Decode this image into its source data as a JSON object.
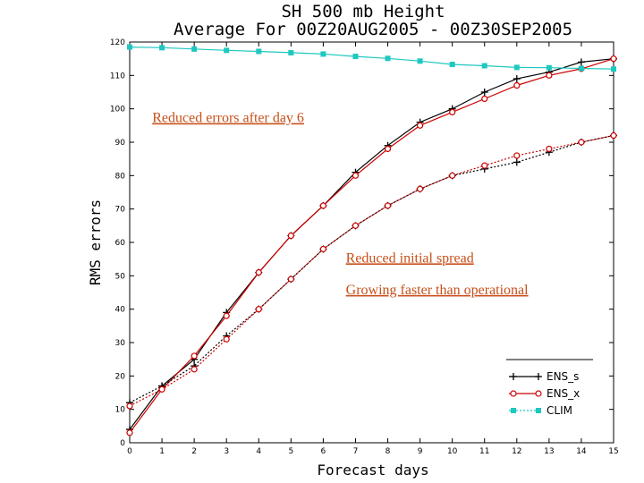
{
  "chart_data": {
    "type": "line",
    "title": "SH 500 mb Height",
    "subtitle": "Average For 00Z20AUG2005 - 00Z30SEP2005",
    "xlabel": "Forecast days",
    "ylabel": "RMS errors",
    "xlim": [
      0,
      15
    ],
    "ylim": [
      0,
      120
    ],
    "xticks": [
      "0",
      "1",
      "2",
      "3",
      "4",
      "5",
      "6",
      "7",
      "8",
      "9",
      "10",
      "11",
      "12",
      "13",
      "14",
      "15"
    ],
    "yticks": [
      "0",
      "10",
      "20",
      "30",
      "40",
      "50",
      "60",
      "70",
      "80",
      "90",
      "100",
      "110",
      "120"
    ],
    "grid": false,
    "legend_position": "bottom-right",
    "series": [
      {
        "name": "ENS_s",
        "color": "#000000",
        "dash": "solid",
        "marker": "plus",
        "x": [
          0,
          1,
          2,
          3,
          4,
          5,
          6,
          7,
          8,
          9,
          10,
          11,
          12,
          13,
          14,
          15
        ],
        "y": [
          4,
          17,
          25,
          39,
          51,
          62,
          71,
          81,
          89,
          96,
          100,
          105,
          109,
          111,
          114,
          115
        ]
      },
      {
        "name": "ENS_x",
        "color": "#cc0000",
        "dash": "solid",
        "marker": "circle",
        "x": [
          0,
          1,
          2,
          3,
          4,
          5,
          6,
          7,
          8,
          9,
          10,
          11,
          12,
          13,
          14,
          15
        ],
        "y": [
          3,
          16,
          26,
          38,
          51,
          62,
          71,
          80,
          88,
          95,
          99,
          103,
          107,
          110,
          112,
          115
        ]
      },
      {
        "name": "",
        "color": "#000000",
        "dash": "dotted",
        "marker": "plus",
        "x": [
          0,
          1,
          2,
          3,
          4,
          5,
          6,
          7,
          8,
          9,
          10,
          11,
          12,
          13,
          14,
          15
        ],
        "y": [
          12,
          17,
          23,
          32,
          40,
          49,
          58,
          65,
          71,
          76,
          80,
          82,
          84,
          87,
          90,
          92
        ]
      },
      {
        "name": "",
        "color": "#cc0000",
        "dash": "dotted",
        "marker": "circle",
        "x": [
          0,
          1,
          2,
          3,
          4,
          5,
          6,
          7,
          8,
          9,
          10,
          11,
          12,
          13,
          14,
          15
        ],
        "y": [
          11,
          16,
          22,
          31,
          40,
          49,
          58,
          65,
          71,
          76,
          80,
          83,
          86,
          88,
          90,
          92
        ]
      },
      {
        "name": "CLIM",
        "color": "#1ec8c0",
        "dash": "solid",
        "marker": "square",
        "x": [
          0,
          1,
          2,
          3,
          4,
          5,
          6,
          7,
          8,
          9,
          10,
          11,
          12,
          13,
          14,
          15
        ],
        "y": [
          118.5,
          118.3,
          117.9,
          117.5,
          117.2,
          116.8,
          116.4,
          115.7,
          115.1,
          114.3,
          113.3,
          112.9,
          112.4,
          112.3,
          112.1,
          111.9
        ]
      }
    ],
    "annotations": [
      {
        "text": "Reduced errors after day 6",
        "x": 0.7,
        "y": 96
      },
      {
        "text": "Reduced initial spread",
        "x": 6.7,
        "y": 54
      },
      {
        "text": "Growing faster than operational",
        "x": 6.7,
        "y": 44.5
      }
    ]
  }
}
